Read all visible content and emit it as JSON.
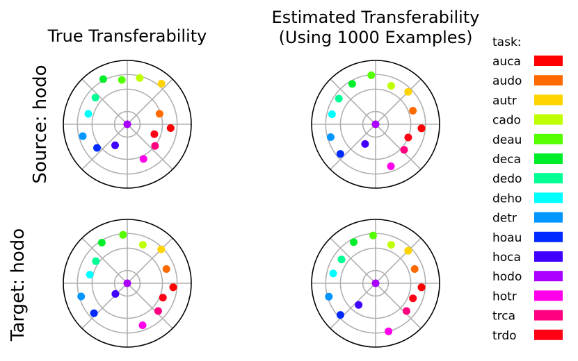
{
  "figure": {
    "col_titles": [
      [
        "True Transferability"
      ],
      [
        "Estimated Transferability",
        "(Using 1000 Examples)"
      ]
    ],
    "row_labels": [
      "Source: hodo",
      "Target: hodo"
    ],
    "legend_title": "task:"
  },
  "chart_data": {
    "type": "scatter",
    "polar": true,
    "grid": true,
    "legend_position": "right",
    "radial_grid_fractions": [
      0.2,
      0.55,
      0.78
    ],
    "angular_grid_deg": [
      0,
      45,
      90,
      135,
      180,
      225,
      270,
      315
    ],
    "tasks": [
      {
        "name": "auca",
        "color": "#ff0000"
      },
      {
        "name": "audo",
        "color": "#ff6a00"
      },
      {
        "name": "autr",
        "color": "#ffd400"
      },
      {
        "name": "cado",
        "color": "#bfff00"
      },
      {
        "name": "deau",
        "color": "#55ff00"
      },
      {
        "name": "deca",
        "color": "#00ee2a"
      },
      {
        "name": "dedo",
        "color": "#00ff95"
      },
      {
        "name": "deho",
        "color": "#00ffff"
      },
      {
        "name": "detr",
        "color": "#0095ff"
      },
      {
        "name": "hoau",
        "color": "#002aff"
      },
      {
        "name": "hoca",
        "color": "#3f00ff"
      },
      {
        "name": "hodo",
        "color": "#aa00ff"
      },
      {
        "name": "hotr",
        "color": "#ff00ea"
      },
      {
        "name": "trca",
        "color": "#ff0080"
      },
      {
        "name": "trdo",
        "color": "#ff0015"
      }
    ],
    "panels": [
      {
        "row": 0,
        "col": 0,
        "points": [
          {
            "task": "auca",
            "angle": -5,
            "r": 0.68
          },
          {
            "task": "audo",
            "angle": 18,
            "r": 0.53
          },
          {
            "task": "autr",
            "angle": 50,
            "r": 0.83
          },
          {
            "task": "cado",
            "angle": 75,
            "r": 0.75
          },
          {
            "task": "deau",
            "angle": 97,
            "r": 0.7
          },
          {
            "task": "deca",
            "angle": 118,
            "r": 0.8
          },
          {
            "task": "dedo",
            "angle": 140,
            "r": 0.65
          },
          {
            "task": "deho",
            "angle": 165,
            "r": 0.63
          },
          {
            "task": "detr",
            "angle": 195,
            "r": 0.72
          },
          {
            "task": "hoau",
            "angle": 218,
            "r": 0.6
          },
          {
            "task": "hoca",
            "angle": 240,
            "r": 0.38
          },
          {
            "task": "hodo",
            "angle": 0,
            "r": 0.0
          },
          {
            "task": "hotr",
            "angle": 295,
            "r": 0.6
          },
          {
            "task": "trca",
            "angle": 322,
            "r": 0.55
          },
          {
            "task": "trdo",
            "angle": 340,
            "r": 0.45
          }
        ]
      },
      {
        "row": 0,
        "col": 1,
        "points": [
          {
            "task": "auca",
            "angle": -5,
            "r": 0.72
          },
          {
            "task": "audo",
            "angle": 20,
            "r": 0.62
          },
          {
            "task": "autr",
            "angle": 45,
            "r": 0.72
          },
          {
            "task": "cado",
            "angle": 68,
            "r": 0.65
          },
          {
            "task": "deau",
            "angle": 95,
            "r": 0.77
          },
          {
            "task": "deca",
            "angle": 120,
            "r": 0.73
          },
          {
            "task": "dedo",
            "angle": 145,
            "r": 0.7
          },
          {
            "task": "deho",
            "angle": 167,
            "r": 0.7
          },
          {
            "task": "detr",
            "angle": 196,
            "r": 0.73
          },
          {
            "task": "hoau",
            "angle": 220,
            "r": 0.72
          },
          {
            "task": "hoca",
            "angle": 242,
            "r": 0.35
          },
          {
            "task": "hodo",
            "angle": 0,
            "r": 0.0
          },
          {
            "task": "hotr",
            "angle": 290,
            "r": 0.7
          },
          {
            "task": "trca",
            "angle": 318,
            "r": 0.6
          },
          {
            "task": "trdo",
            "angle": 338,
            "r": 0.55
          }
        ]
      },
      {
        "row": 1,
        "col": 0,
        "points": [
          {
            "task": "auca",
            "angle": -5,
            "r": 0.72
          },
          {
            "task": "audo",
            "angle": 20,
            "r": 0.65
          },
          {
            "task": "autr",
            "angle": 45,
            "r": 0.75
          },
          {
            "task": "cado",
            "angle": 68,
            "r": 0.65
          },
          {
            "task": "deau",
            "angle": 95,
            "r": 0.76
          },
          {
            "task": "deca",
            "angle": 122,
            "r": 0.75
          },
          {
            "task": "dedo",
            "angle": 145,
            "r": 0.6
          },
          {
            "task": "deho",
            "angle": 167,
            "r": 0.6
          },
          {
            "task": "detr",
            "angle": 196,
            "r": 0.75
          },
          {
            "task": "hoau",
            "angle": 222,
            "r": 0.7
          },
          {
            "task": "hoca",
            "angle": 222,
            "r": 0.25
          },
          {
            "task": "hodo",
            "angle": 0,
            "r": 0.0
          },
          {
            "task": "hotr",
            "angle": 290,
            "r": 0.7
          },
          {
            "task": "trca",
            "angle": 318,
            "r": 0.65
          },
          {
            "task": "trdo",
            "angle": 338,
            "r": 0.6
          }
        ]
      },
      {
        "row": 1,
        "col": 1,
        "points": [
          {
            "task": "auca",
            "angle": -5,
            "r": 0.72
          },
          {
            "task": "audo",
            "angle": 20,
            "r": 0.65
          },
          {
            "task": "autr",
            "angle": 45,
            "r": 0.72
          },
          {
            "task": "cado",
            "angle": 68,
            "r": 0.65
          },
          {
            "task": "deau",
            "angle": 93,
            "r": 0.75
          },
          {
            "task": "deca",
            "angle": 118,
            "r": 0.73
          },
          {
            "task": "dedo",
            "angle": 145,
            "r": 0.65
          },
          {
            "task": "deho",
            "angle": 167,
            "r": 0.68
          },
          {
            "task": "detr",
            "angle": 196,
            "r": 0.76
          },
          {
            "task": "hoau",
            "angle": 222,
            "r": 0.74
          },
          {
            "task": "hoca",
            "angle": 232,
            "r": 0.43
          },
          {
            "task": "hodo",
            "angle": 0,
            "r": 0.0
          },
          {
            "task": "hotr",
            "angle": 285,
            "r": 0.78
          },
          {
            "task": "trca",
            "angle": 318,
            "r": 0.65
          },
          {
            "task": "trdo",
            "angle": 338,
            "r": 0.63
          }
        ]
      }
    ]
  }
}
